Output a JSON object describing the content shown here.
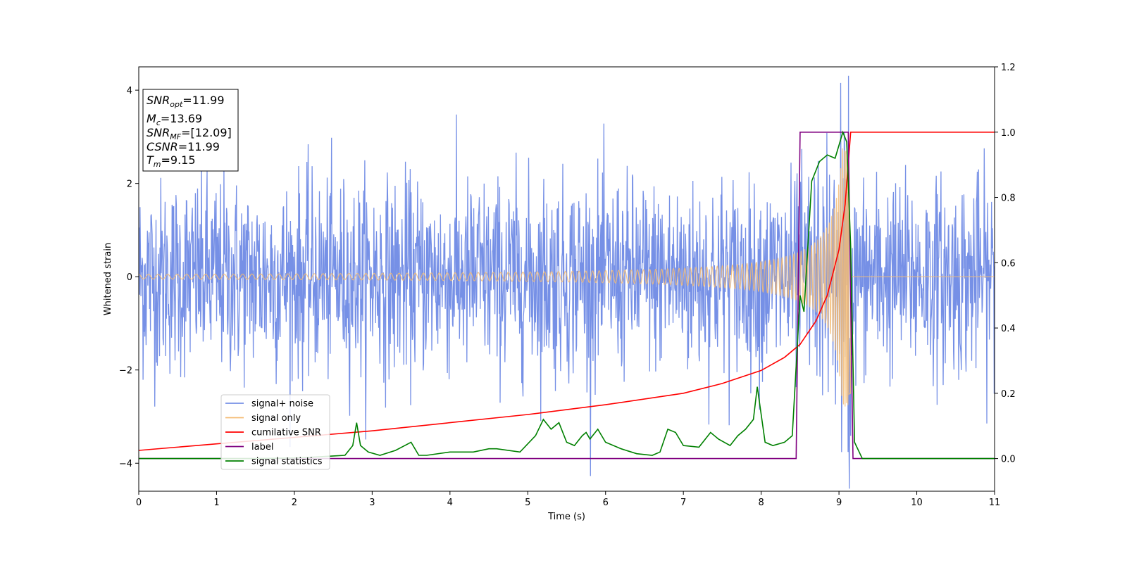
{
  "chart_data": {
    "type": "line",
    "xlabel": "Time (s)",
    "ylabel_left": "Whitened strain",
    "xlim": [
      0,
      11
    ],
    "ylim_left": [
      -4.6,
      4.5
    ],
    "ylim_right": [
      -0.1,
      1.2
    ],
    "x_ticks": [
      0,
      1,
      2,
      3,
      4,
      5,
      6,
      7,
      8,
      9,
      10,
      11
    ],
    "y_left_ticks": [
      -4,
      -2,
      0,
      2,
      4
    ],
    "y_right_ticks": [
      0.0,
      0.2,
      0.4,
      0.6,
      0.8,
      1.0,
      1.2
    ],
    "legend_position": "lower-left",
    "grid": false,
    "info_box": {
      "lines": [
        {
          "symbol": "SNR",
          "sub": "opt",
          "value": "=11.99"
        },
        {
          "symbol": "M",
          "sub": "c",
          "value": "=13.69"
        },
        {
          "symbol": "SNR",
          "sub": "MF",
          "value": "=[12.09]"
        },
        {
          "symbol": "CSNR",
          "sub": "",
          "value": "=11.99"
        },
        {
          "symbol": "T",
          "sub": "m",
          "value": "=9.15"
        }
      ]
    },
    "series": [
      {
        "name": "signal+ noise",
        "axis": "left",
        "color": "#7690e6",
        "style": "noise",
        "noise_sigma": 1.0,
        "sample_rate": 180,
        "peak_envelope": 2.8
      },
      {
        "name": "signal only",
        "axis": "left",
        "color": "#f4bc74",
        "style": "chirp",
        "merger_time": 9.15,
        "amplitude_at_merger": 2.8,
        "amplitude_early": 0.05
      },
      {
        "name": "cumilative SNR",
        "axis": "right",
        "color": "#ff0000",
        "x": [
          0,
          1,
          2,
          3,
          4,
          5,
          6,
          7,
          7.5,
          8,
          8.3,
          8.5,
          8.7,
          8.85,
          9.0,
          9.08,
          9.15,
          9.16,
          11
        ],
        "y": [
          0.025,
          0.045,
          0.065,
          0.085,
          0.11,
          0.135,
          0.165,
          0.2,
          0.23,
          0.27,
          0.31,
          0.35,
          0.42,
          0.5,
          0.64,
          0.78,
          1.0,
          1.0,
          1.0
        ]
      },
      {
        "name": "label",
        "axis": "right",
        "color": "#800080",
        "x": [
          0,
          8.45,
          8.5,
          9.12,
          9.18,
          11
        ],
        "y": [
          0.0,
          0.0,
          1.0,
          1.0,
          0.0,
          0.0
        ]
      },
      {
        "name": "signal statistics",
        "axis": "right",
        "color": "#008000",
        "x": [
          0,
          0.5,
          1.0,
          1.5,
          2.0,
          2.2,
          2.5,
          2.65,
          2.75,
          2.8,
          2.85,
          2.95,
          3.1,
          3.3,
          3.5,
          3.6,
          3.7,
          4.0,
          4.3,
          4.5,
          4.6,
          4.9,
          5.1,
          5.2,
          5.3,
          5.4,
          5.5,
          5.6,
          5.7,
          5.75,
          5.8,
          5.9,
          6.0,
          6.2,
          6.4,
          6.6,
          6.7,
          6.8,
          6.9,
          7.0,
          7.2,
          7.35,
          7.45,
          7.6,
          7.7,
          7.8,
          7.9,
          7.95,
          8.05,
          8.15,
          8.3,
          8.4,
          8.5,
          8.55,
          8.65,
          8.75,
          8.85,
          8.95,
          9.05,
          9.1,
          9.15,
          9.2,
          9.3,
          10,
          11
        ],
        "y": [
          0.0,
          0.0,
          0.0,
          0.0,
          0.002,
          0.004,
          0.008,
          0.01,
          0.04,
          0.11,
          0.04,
          0.02,
          0.01,
          0.025,
          0.05,
          0.01,
          0.01,
          0.02,
          0.02,
          0.03,
          0.03,
          0.02,
          0.07,
          0.12,
          0.09,
          0.11,
          0.05,
          0.04,
          0.07,
          0.08,
          0.06,
          0.09,
          0.05,
          0.03,
          0.015,
          0.01,
          0.02,
          0.09,
          0.08,
          0.04,
          0.035,
          0.08,
          0.06,
          0.04,
          0.07,
          0.09,
          0.12,
          0.22,
          0.05,
          0.04,
          0.05,
          0.07,
          0.5,
          0.45,
          0.85,
          0.91,
          0.93,
          0.92,
          1.0,
          0.97,
          0.65,
          0.05,
          0.0,
          0.0,
          0.0
        ]
      }
    ]
  }
}
